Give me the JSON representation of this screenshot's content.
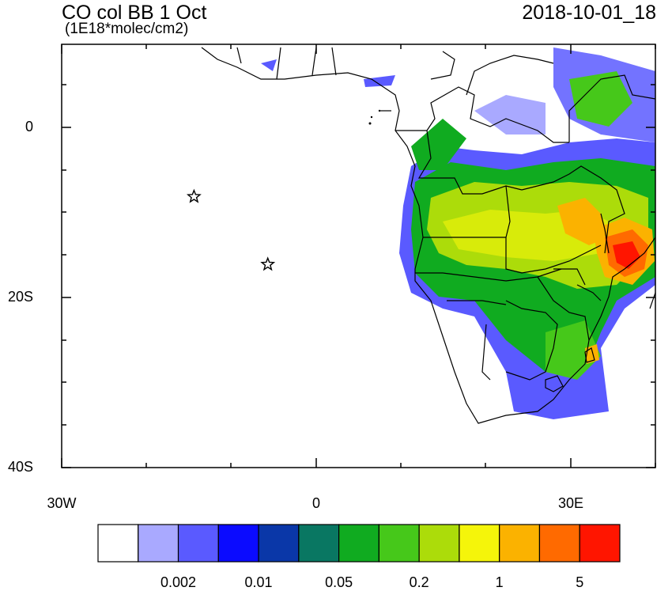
{
  "header": {
    "title": "CO col BB 1 Oct",
    "units": "(1E18*molec/cm2)",
    "datetime": "2018-10-01_18"
  },
  "map": {
    "lat_ticks": [
      "0",
      "20S",
      "40S"
    ],
    "lon_ticks": [
      "30W",
      "0",
      "30E"
    ],
    "markers": [
      {
        "name": "star-marker-1",
        "lon": -14.4,
        "lat": -8.0
      },
      {
        "name": "star-marker-2",
        "lon": -5.7,
        "lat": -16.0
      }
    ]
  },
  "colorbar": {
    "colors": [
      "#ffffff",
      "#a9a9ff",
      "#5a5aff",
      "#0b0bff",
      "#0a37a8",
      "#097762",
      "#10ab20",
      "#46c81a",
      "#acdc0a",
      "#f5f50a",
      "#fbb200",
      "#ff6a00",
      "#ff1500"
    ],
    "labels": [
      "0.002",
      "0.01",
      "0.05",
      "0.2",
      "1",
      "5"
    ]
  }
}
